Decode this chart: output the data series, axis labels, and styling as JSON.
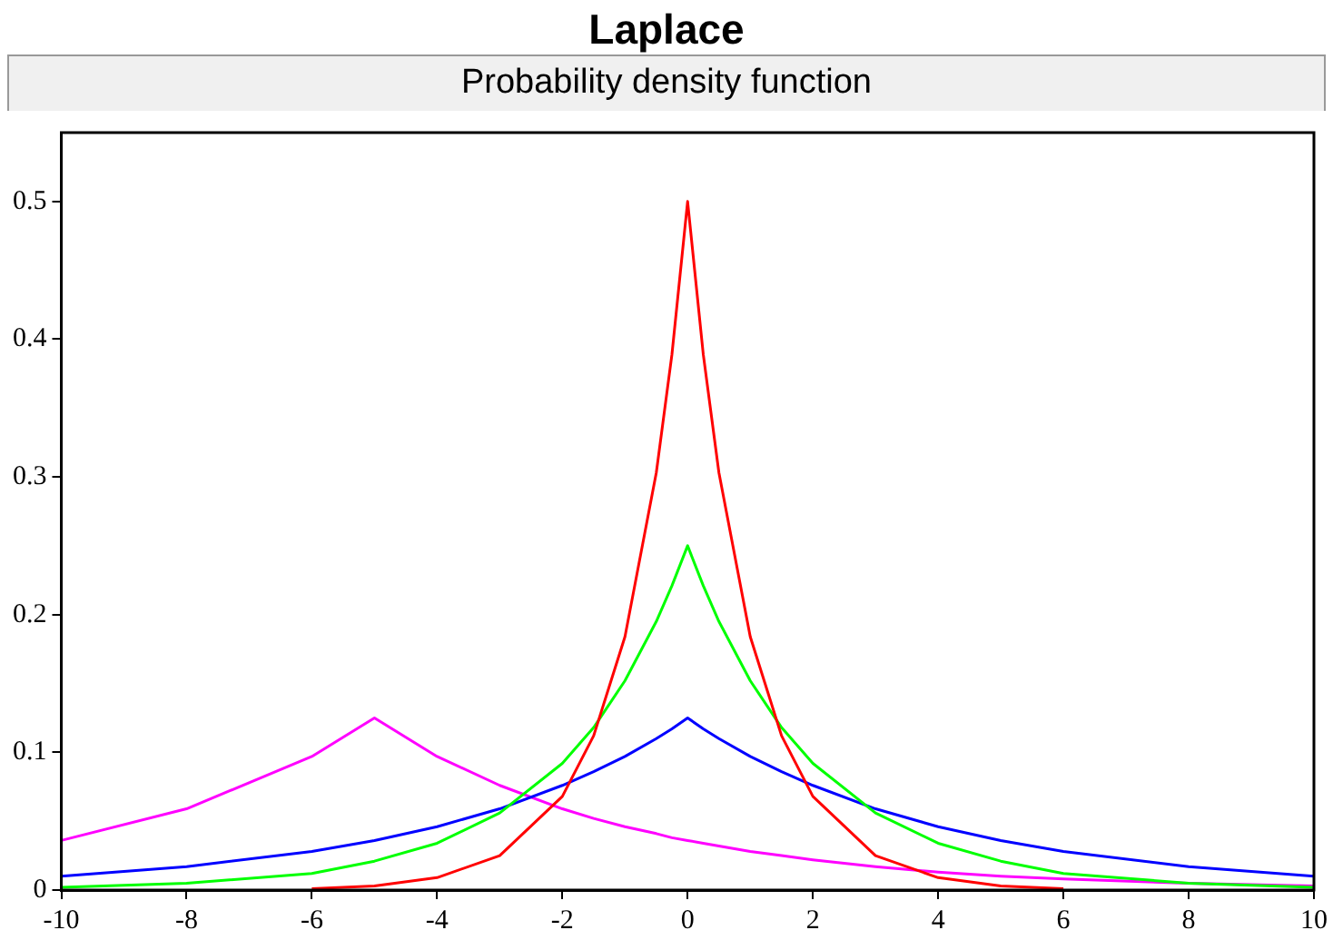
{
  "chart_data": {
    "type": "line",
    "title": "Laplace",
    "subtitle": "Probability density function",
    "x": [
      -10,
      -8,
      -6,
      -5,
      -4,
      -3,
      -2,
      -1.5,
      -1,
      -0.5,
      -0.25,
      0,
      0.25,
      0.5,
      1,
      1.5,
      2,
      3,
      4,
      5,
      6,
      8,
      10
    ],
    "series": [
      {
        "color": "#ff0000",
        "x": [
          -6,
          -5,
          -4,
          -3,
          -2,
          -1.5,
          -1,
          -0.5,
          -0.25,
          0,
          0.25,
          0.5,
          1,
          1.5,
          2,
          3,
          4,
          5,
          6
        ],
        "values": [
          0.001,
          0.003,
          0.009,
          0.025,
          0.068,
          0.112,
          0.184,
          0.303,
          0.389,
          0.5,
          0.389,
          0.303,
          0.184,
          0.112,
          0.068,
          0.025,
          0.009,
          0.003,
          0.001
        ]
      },
      {
        "color": "#00ff00",
        "values": [
          0.002,
          0.005,
          0.012,
          0.021,
          0.034,
          0.056,
          0.092,
          0.118,
          0.152,
          0.195,
          0.221,
          0.25,
          0.221,
          0.195,
          0.152,
          0.118,
          0.092,
          0.056,
          0.034,
          0.021,
          0.012,
          0.005,
          0.002
        ]
      },
      {
        "color": "#0000ff",
        "values": [
          0.01,
          0.017,
          0.028,
          0.036,
          0.046,
          0.059,
          0.076,
          0.086,
          0.097,
          0.11,
          0.117,
          0.125,
          0.117,
          0.11,
          0.097,
          0.086,
          0.076,
          0.059,
          0.046,
          0.036,
          0.028,
          0.017,
          0.01
        ]
      },
      {
        "color": "#ff00ff",
        "values": [
          0.036,
          0.059,
          0.097,
          0.125,
          0.097,
          0.076,
          0.059,
          0.052,
          0.046,
          0.041,
          0.038,
          0.036,
          0.034,
          0.032,
          0.028,
          0.025,
          0.022,
          0.017,
          0.013,
          0.01,
          0.008,
          0.005,
          0.003
        ]
      }
    ],
    "xlim": [
      -10,
      10
    ],
    "xticks": [
      -10,
      -8,
      -6,
      -4,
      -2,
      0,
      2,
      4,
      6,
      8,
      10
    ],
    "ylim": [
      0,
      0.55
    ],
    "yticks": [
      0,
      0.1,
      0.2,
      0.3,
      0.4,
      0.5
    ],
    "grid": false,
    "legend": false,
    "marker": "none",
    "line_style": "solid"
  }
}
